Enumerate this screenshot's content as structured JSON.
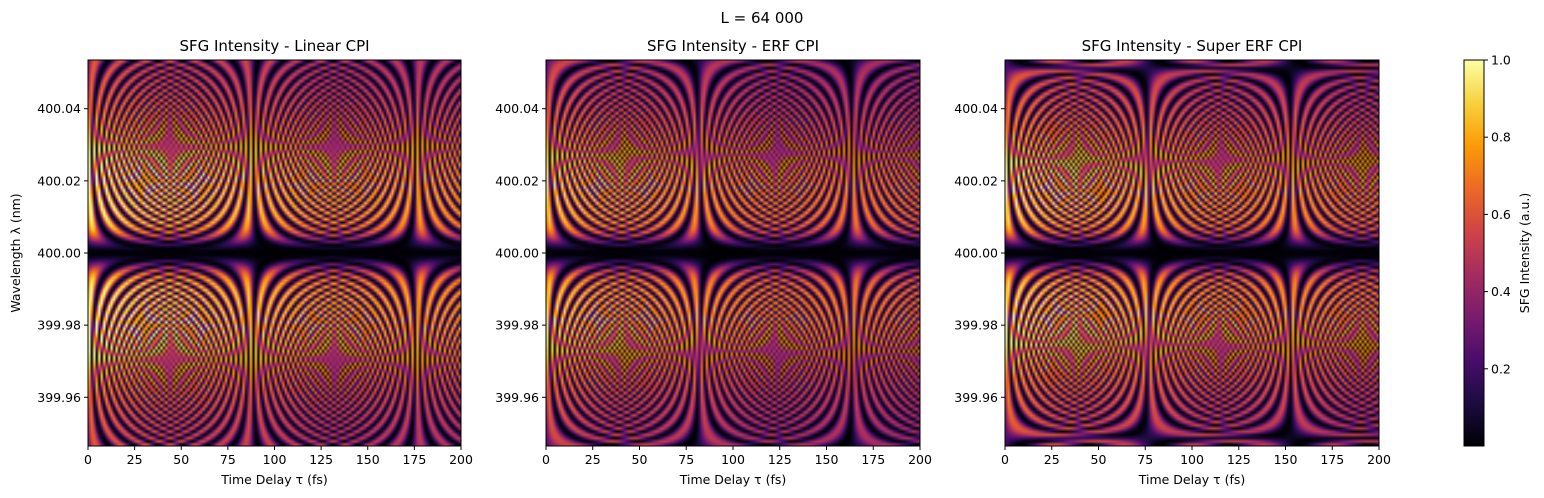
{
  "figure": {
    "suptitle": "L = 64 000"
  },
  "colormap": {
    "name": "inferno",
    "stops": [
      "#000004",
      "#1b0c41",
      "#4a0c6b",
      "#781c6d",
      "#a52c60",
      "#cf4446",
      "#ed6925",
      "#fb9b06",
      "#f7d13d",
      "#fcffa4"
    ]
  },
  "colorbar": {
    "label": "SFG Intensity (a.u.)",
    "range": [
      0.0,
      1.0
    ],
    "ticks": [
      "0.2",
      "0.4",
      "0.6",
      "0.8",
      "1.0"
    ]
  },
  "chart_data": [
    {
      "type": "heatmap",
      "title": "SFG Intensity - Linear CPI",
      "xlabel": "Time Delay τ (fs)",
      "ylabel": "Wavelength λ (nm)",
      "xlim": [
        0,
        200
      ],
      "ylim": [
        399.9465,
        400.0535
      ],
      "xticks": [
        "0",
        "25",
        "50",
        "75",
        "100",
        "125",
        "150",
        "175",
        "200"
      ],
      "yticks": [
        "400.04",
        "400.02",
        "400.00",
        "399.98",
        "399.96"
      ],
      "peak_intensity": 1.0,
      "dark_band_wavelength": 400.0
    },
    {
      "type": "heatmap",
      "title": "SFG Intensity - ERF CPI",
      "xlabel": "Time Delay τ (fs)",
      "ylabel": "",
      "xlim": [
        0,
        200
      ],
      "ylim": [
        399.9465,
        400.0535
      ],
      "xticks": [
        "0",
        "25",
        "50",
        "75",
        "100",
        "125",
        "150",
        "175",
        "200"
      ],
      "yticks": [
        "400.04",
        "400.02",
        "400.00",
        "399.98",
        "399.96"
      ],
      "peak_intensity": 0.9,
      "dark_band_wavelength": 400.0
    },
    {
      "type": "heatmap",
      "title": "SFG Intensity - Super ERF CPI",
      "xlabel": "Time Delay τ (fs)",
      "ylabel": "",
      "xlim": [
        0,
        200
      ],
      "ylim": [
        399.9465,
        400.0535
      ],
      "xticks": [
        "0",
        "25",
        "50",
        "75",
        "100",
        "125",
        "150",
        "175",
        "200"
      ],
      "yticks": [
        "400.04",
        "400.02",
        "400.00",
        "399.98",
        "399.96"
      ],
      "peak_intensity": 0.95,
      "dark_band_wavelength": 400.0
    }
  ]
}
